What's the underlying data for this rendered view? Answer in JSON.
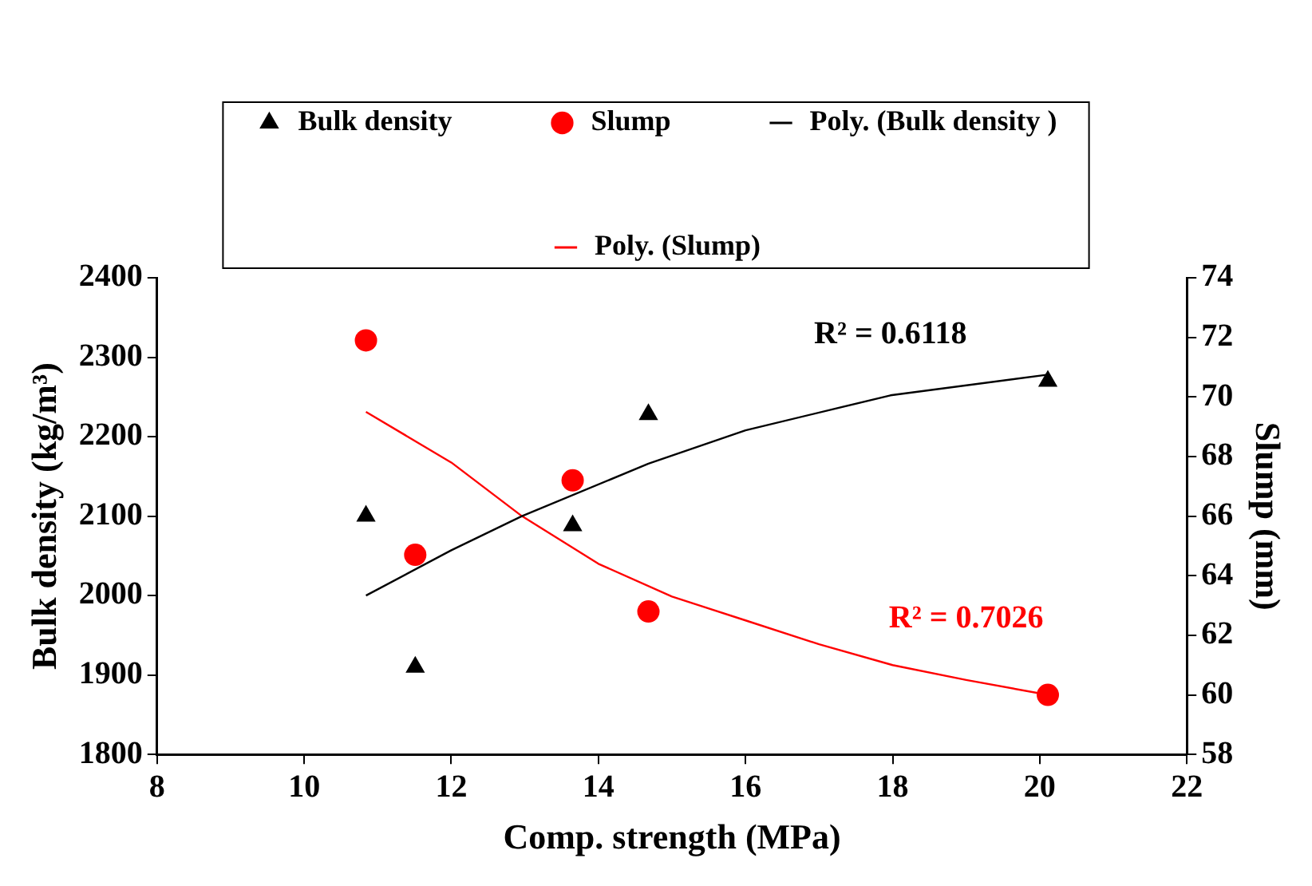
{
  "chart_data": {
    "type": "scatter",
    "xlabel": "Comp. strength (MPa)",
    "ylabel": "Bulk density (kg/m³)",
    "y2label": "Slump (mm)",
    "xlim": [
      8,
      22
    ],
    "xticks": [
      8,
      10,
      12,
      14,
      16,
      18,
      20,
      22
    ],
    "ylim": [
      1800,
      2400
    ],
    "yticks": [
      {
        "value": 1800,
        "label": "1800"
      },
      {
        "value": 1900,
        "label": "1900"
      },
      {
        "value": 2000,
        "label": "2000"
      },
      {
        "value": 2100,
        "label": "2100"
      },
      {
        "value": 2200,
        "label": "2200"
      },
      {
        "value": 2300,
        "label": "2300"
      },
      {
        "value": 2400,
        "label": "2400"
      }
    ],
    "y2lim": [
      58,
      74
    ],
    "y2ticks": [
      58,
      60,
      62,
      64,
      66,
      68,
      70,
      72,
      74
    ],
    "grid": false,
    "legend": "top",
    "series": [
      {
        "name": "Bulk density",
        "marker": "triangle",
        "color": "#000000",
        "x": [
          10.84,
          11.51,
          13.65,
          14.68,
          20.11
        ],
        "values": [
          2100,
          1910,
          2088,
          2228,
          2270
        ]
      },
      {
        "name": "Slump",
        "marker": "circle",
        "color": "#ff0000",
        "axis": "y2",
        "x": [
          10.84,
          11.51,
          13.65,
          14.68,
          20.11
        ],
        "values": [
          71.9,
          64.7,
          67.2,
          62.8,
          60.0
        ]
      },
      {
        "name": "Poly. (Bulk density )",
        "type": "line",
        "marker": "none",
        "color": "#000000",
        "x": [
          10.84,
          12,
          12.96,
          14.68,
          16,
          17.97,
          20.11
        ],
        "values": [
          2000,
          2057,
          2100,
          2166,
          2208,
          2252,
          2278
        ]
      },
      {
        "name": "Poly. (Slump)",
        "type": "line",
        "marker": "none",
        "color": "#ff0000",
        "axis": "y2",
        "x": [
          10.84,
          12,
          12.96,
          14,
          15,
          16,
          17,
          18,
          19,
          20.11
        ],
        "values": [
          69.5,
          67.8,
          66.0,
          64.4,
          63.3,
          62.5,
          61.7,
          61.0,
          60.5,
          60.0
        ]
      }
    ],
    "annotations": [
      "R² = 0.6118",
      "R² = 0.7026"
    ]
  }
}
